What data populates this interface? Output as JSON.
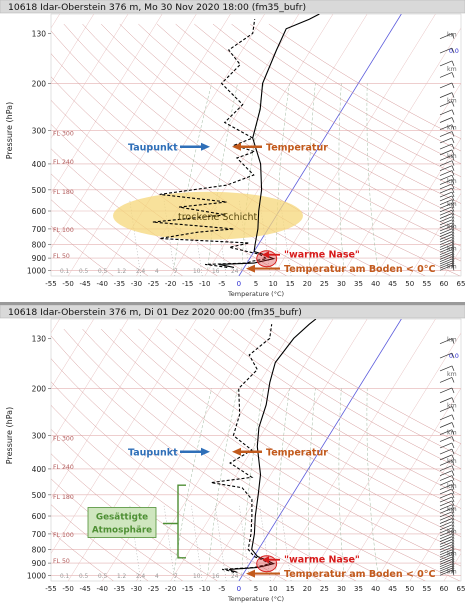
{
  "chart_data": [
    {
      "type": "line",
      "title": "10618 Idar-Oberstein 376 m, Mo 30 Nov 2020 18:00 (fm35_bufr)",
      "xlabel": "Temperature (°C)",
      "ylabel": "Pressure (hPa)",
      "x_ticks": [
        "-55",
        "-50",
        "-45",
        "-40",
        "-35",
        "-30",
        "-25",
        "-20",
        "-15",
        "-10",
        "-5",
        "0",
        "5",
        "10",
        "15",
        "20",
        "25",
        "30",
        "35",
        "40",
        "45",
        "50",
        "55",
        "60",
        "65"
      ],
      "y_ticks": [
        "130",
        "200",
        "300",
        "400",
        "500",
        "600",
        "700",
        "800",
        "900",
        "1000"
      ],
      "y_scale": "log",
      "xlim": [
        -55,
        65
      ],
      "ylim": [
        1050,
        110
      ],
      "flight_levels": [
        "FL 300",
        "FL 240",
        "FL 180",
        "FL 100",
        "FL 50"
      ],
      "mixing_ratio_labels": [
        "0.1",
        "0.5",
        "0.5",
        "1.2",
        "2.4",
        "4",
        "7",
        "10",
        "16",
        "24"
      ],
      "km_labels": [
        "km",
        "km",
        "km",
        "km",
        "km",
        "km",
        "km",
        "km",
        "km",
        "km"
      ],
      "km_extra": "0.0",
      "series": [
        {
          "name": "Temperatur",
          "color": "#000000",
          "dash": "solid",
          "points": [
            [
              -3,
              975
            ],
            [
              -6,
              960
            ],
            [
              -8,
              950
            ],
            [
              2,
              940
            ],
            [
              4,
              925
            ],
            [
              7,
              905
            ],
            [
              3,
              870
            ],
            [
              0,
              850
            ],
            [
              -1,
              800
            ],
            [
              -3,
              700
            ],
            [
              -6,
              600
            ],
            [
              -9,
              500
            ],
            [
              -14,
              400
            ],
            [
              -21,
              320
            ],
            [
              -24,
              250
            ],
            [
              -28,
              200
            ],
            [
              -30,
              150
            ],
            [
              -31,
              125
            ],
            [
              -26,
              115
            ],
            [
              -24,
              110
            ]
          ]
        },
        {
          "name": "Taupunkt",
          "color": "#000000",
          "dash": "dashed",
          "points": [
            [
              -5,
              975
            ],
            [
              -9,
              960
            ],
            [
              -12,
              950
            ],
            [
              0,
              940
            ],
            [
              1,
              925
            ],
            [
              5,
              905
            ],
            [
              2,
              870
            ],
            [
              -2,
              850
            ],
            [
              -8,
              820
            ],
            [
              -3,
              790
            ],
            [
              -30,
              760
            ],
            [
              -20,
              720
            ],
            [
              -10,
              700
            ],
            [
              -35,
              660
            ],
            [
              -15,
              620
            ],
            [
              -30,
              580
            ],
            [
              -17,
              555
            ],
            [
              -38,
              520
            ],
            [
              -20,
              480
            ],
            [
              -14,
              440
            ],
            [
              -22,
              380
            ],
            [
              -18,
              360
            ],
            [
              -25,
              340
            ],
            [
              -21,
              320
            ],
            [
              -32,
              280
            ],
            [
              -30,
              240
            ],
            [
              -40,
              200
            ],
            [
              -38,
              170
            ],
            [
              -44,
              150
            ],
            [
              -40,
              130
            ],
            [
              -42,
              115
            ]
          ]
        }
      ],
      "annotations": {
        "dewpoint_label": "Taupunkt",
        "temperature_label": "Temperatur",
        "dry_layer_label": "trockene Schicht",
        "warm_nose_label": "\"warme Nase\"",
        "surface_temp_label": "Temperatur am Boden < 0°C"
      },
      "colors": {
        "blue": "#2f6fb8",
        "orange": "#c25a1c",
        "red": "#d81b1b",
        "dry_fill": "#f6d77a",
        "green": "#4e8f34"
      }
    },
    {
      "type": "line",
      "title": "10618 Idar-Oberstein 376 m, Di 01 Dez 2020 00:00 (fm35_bufr)",
      "xlabel": "Temperature (°C)",
      "ylabel": "Pressure (hPa)",
      "x_ticks": [
        "-55",
        "-50",
        "-45",
        "-40",
        "-35",
        "-30",
        "-25",
        "-20",
        "-15",
        "-10",
        "-5",
        "0",
        "5",
        "10",
        "15",
        "20",
        "25",
        "30",
        "35",
        "40",
        "45",
        "50",
        "55",
        "60",
        "65"
      ],
      "y_ticks": [
        "130",
        "200",
        "300",
        "400",
        "500",
        "600",
        "700",
        "800",
        "900",
        "1000"
      ],
      "y_scale": "log",
      "xlim": [
        -55,
        65
      ],
      "ylim": [
        1050,
        110
      ],
      "flight_levels": [
        "FL 300",
        "FL 240",
        "FL 180",
        "FL 100",
        "FL 50"
      ],
      "mixing_ratio_labels": [
        "0.1",
        "0.5",
        "0.5",
        "1.2",
        "2.4",
        "4",
        "7",
        "10",
        "16",
        "24"
      ],
      "km_labels": [
        "km",
        "km",
        "km",
        "km",
        "km",
        "km",
        "km",
        "km",
        "km",
        "km"
      ],
      "km_extra": "0.0",
      "series": [
        {
          "name": "Temperatur",
          "color": "#000000",
          "dash": "solid",
          "points": [
            [
              -2,
              975
            ],
            [
              -4,
              960
            ],
            [
              -5,
              950
            ],
            [
              3,
              935
            ],
            [
              5,
              920
            ],
            [
              7,
              905
            ],
            [
              4,
              875
            ],
            [
              1,
              850
            ],
            [
              -2,
              800
            ],
            [
              -4,
              700
            ],
            [
              -7,
              600
            ],
            [
              -10,
              500
            ],
            [
              -13,
              420
            ],
            [
              -19,
              330
            ],
            [
              -22,
              280
            ],
            [
              -24,
              230
            ],
            [
              -27,
              190
            ],
            [
              -29,
              160
            ],
            [
              -28,
              130
            ],
            [
              -26,
              115
            ],
            [
              -25,
              110
            ]
          ]
        },
        {
          "name": "Taupunkt",
          "color": "#000000",
          "dash": "dashed",
          "points": [
            [
              -3,
              975
            ],
            [
              -5,
              960
            ],
            [
              -7,
              950
            ],
            [
              2,
              935
            ],
            [
              4,
              920
            ],
            [
              6,
              905
            ],
            [
              3,
              875
            ],
            [
              0,
              850
            ],
            [
              -3,
              800
            ],
            [
              -5,
              700
            ],
            [
              -8,
              600
            ],
            [
              -11,
              520
            ],
            [
              -16,
              470
            ],
            [
              -26,
              450
            ],
            [
              -15,
              430
            ],
            [
              -24,
              380
            ],
            [
              -20,
              340
            ],
            [
              -28,
              300
            ],
            [
              -30,
              250
            ],
            [
              -35,
              200
            ],
            [
              -33,
              170
            ],
            [
              -38,
              150
            ],
            [
              -35,
              130
            ],
            [
              -37,
              115
            ]
          ]
        }
      ],
      "annotations": {
        "dewpoint_label": "Taupunkt",
        "temperature_label": "Temperatur",
        "saturated_label_1": "Gesättigte",
        "saturated_label_2": "Atmosphäre",
        "warm_nose_label": "\"warme Nase\"",
        "surface_temp_label": "Temperatur am Boden < 0°C"
      },
      "colors": {
        "blue": "#2f6fb8",
        "orange": "#c25a1c",
        "red": "#d81b1b",
        "sat_fill": "#cfe6bf",
        "green": "#4e8f34"
      }
    }
  ]
}
